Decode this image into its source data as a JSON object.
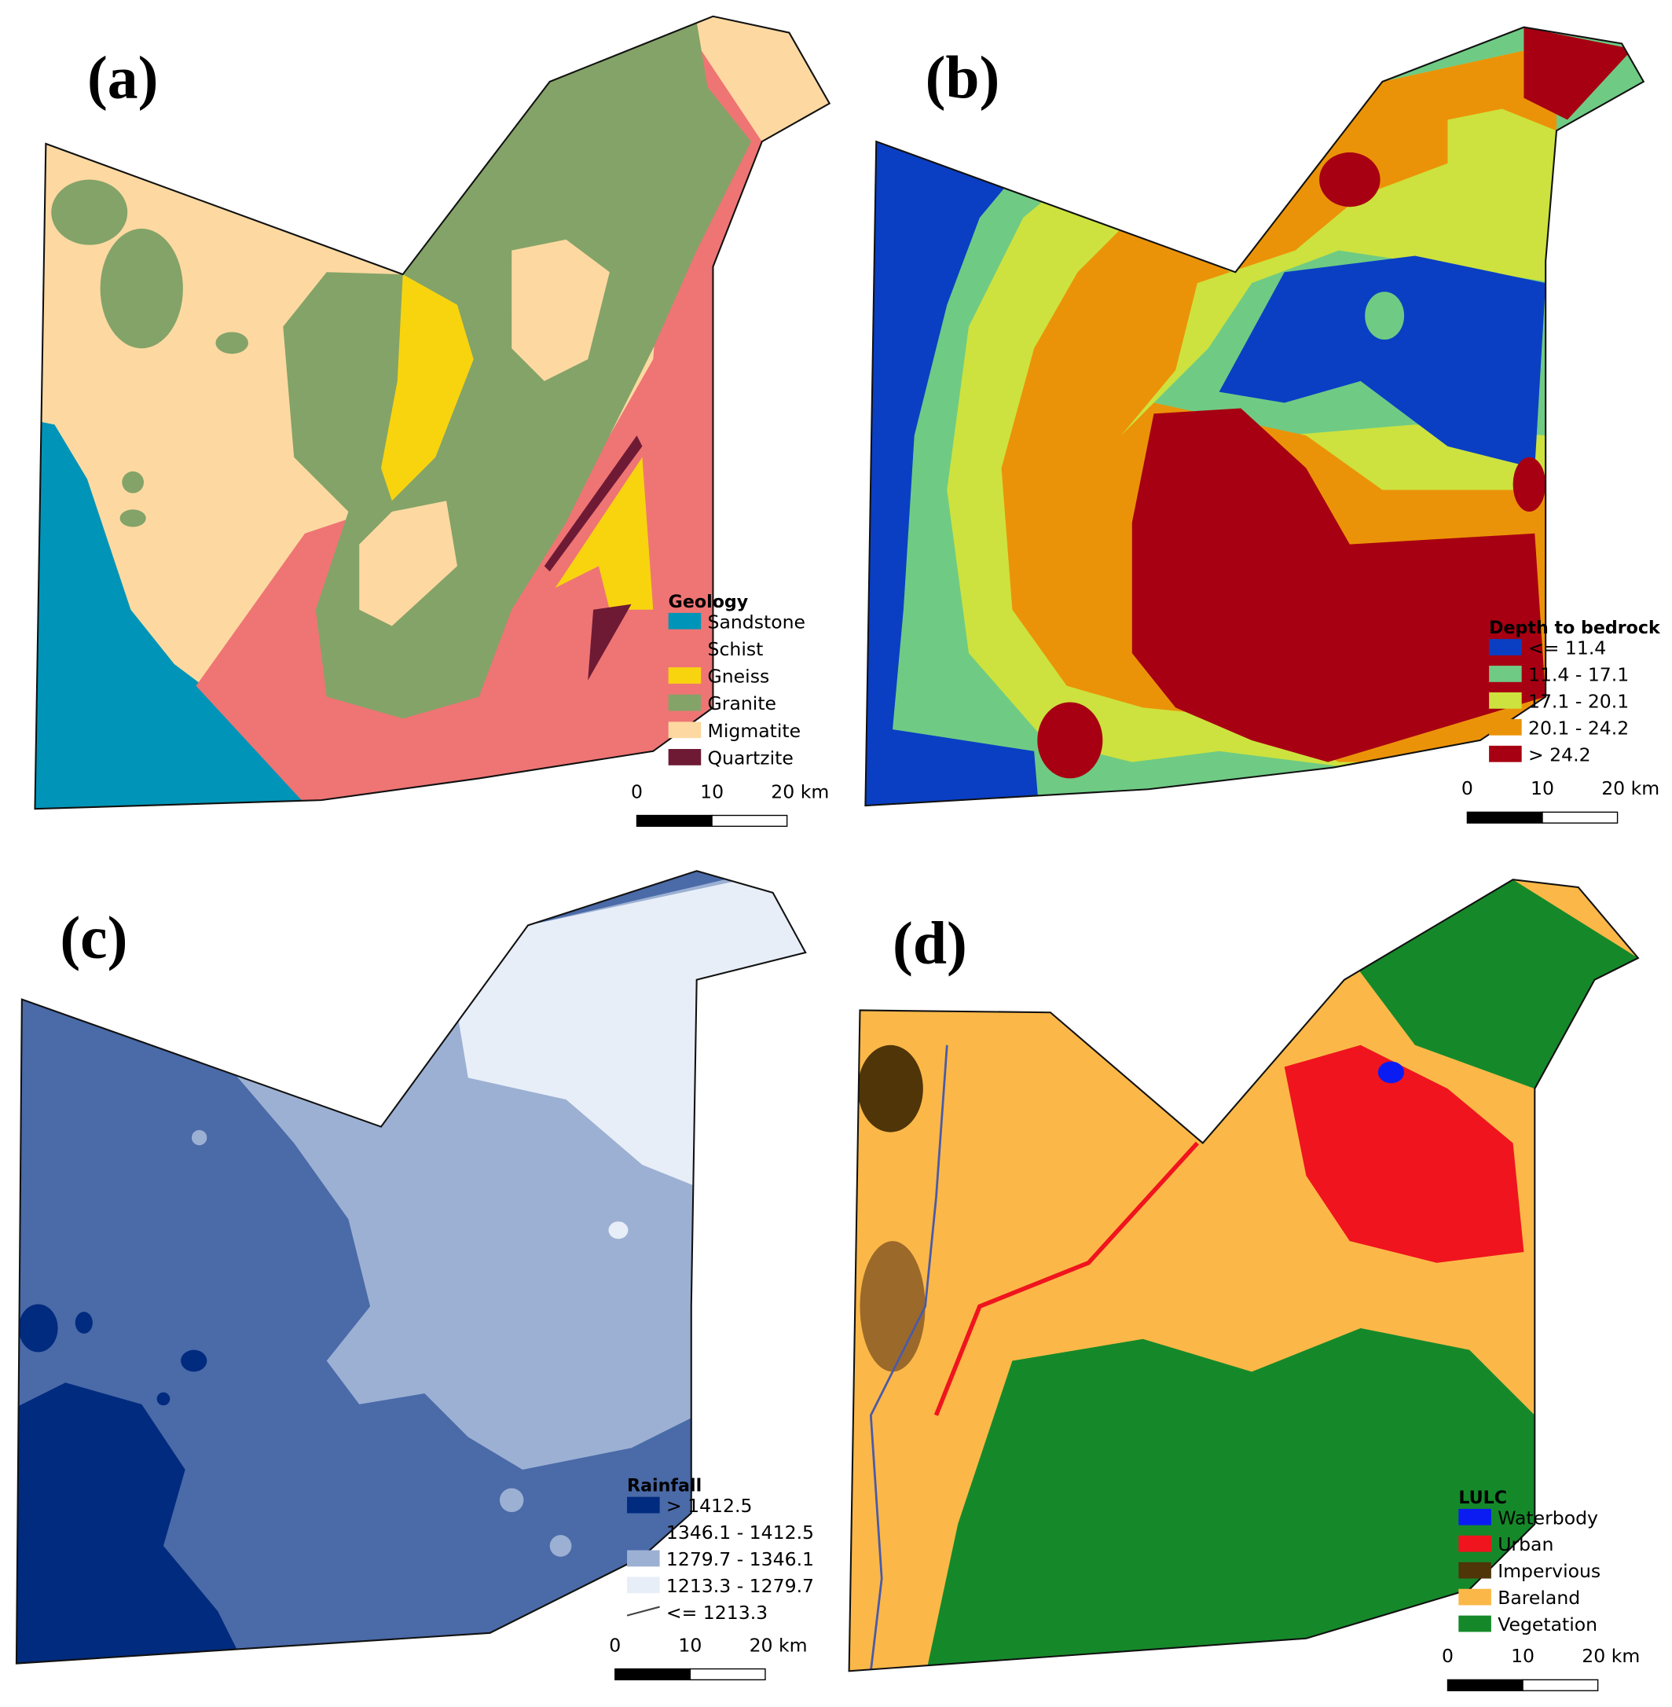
{
  "panels": [
    {
      "label": "(a)",
      "legend": {
        "title": "Geology",
        "items": [
          {
            "name": "Sandstone",
            "color": "#0095b8"
          },
          {
            "name": "Schist",
            "color": "#ee7574"
          },
          {
            "name": "Gneiss",
            "color": "#f8d40f"
          },
          {
            "name": "Granite",
            "color": "#84a368"
          },
          {
            "name": "Migmatite",
            "color": "#fdd9a1"
          },
          {
            "name": "Quartzite",
            "color": "#6e1a35"
          }
        ]
      },
      "scale_bar": [
        "0",
        "10",
        "20 km"
      ]
    },
    {
      "label": "(b)",
      "legend": {
        "title": "Depth to bedrock",
        "items": [
          {
            "name": "<= 11.4",
            "color": "#0a3fc4"
          },
          {
            "name": "11.4 - 17.1",
            "color": "#6fcb84"
          },
          {
            "name": "17.1 - 20.1",
            "color": "#cde23e"
          },
          {
            "name": "20.1 - 24.2",
            "color": "#eb9308"
          },
          {
            "name": "> 24.2",
            "color": "#a70012"
          }
        ]
      },
      "scale_bar": [
        "0",
        "10",
        "20 km"
      ]
    },
    {
      "label": "(c)",
      "legend": {
        "title": "Rainfall",
        "items": [
          {
            "name": "> 1412.5",
            "color": "#012b7e"
          },
          {
            "name": "1346.1 - 1412.5",
            "color": "#4a6aa8"
          },
          {
            "name": "1279.7 - 1346.1",
            "color": "#9cb0d3"
          },
          {
            "name": "1213.3 - 1279.7",
            "color": "#e7eef8"
          },
          {
            "name": "<= 1213.3",
            "color": "#444444",
            "symbol": "line"
          }
        ]
      },
      "scale_bar": [
        "0",
        "10",
        "20 km"
      ]
    },
    {
      "label": "(d)",
      "legend": {
        "title": "LULC",
        "items": [
          {
            "name": "Waterbody",
            "color": "#0a1cf2"
          },
          {
            "name": "Urban",
            "color": "#f0141e"
          },
          {
            "name": "Impervious",
            "color": "#4f3508"
          },
          {
            "name": "Bareland",
            "color": "#fbb848"
          },
          {
            "name": "Vegetation",
            "color": "#15892a"
          }
        ]
      },
      "scale_bar": [
        "0",
        "10",
        "20 km"
      ]
    }
  ]
}
